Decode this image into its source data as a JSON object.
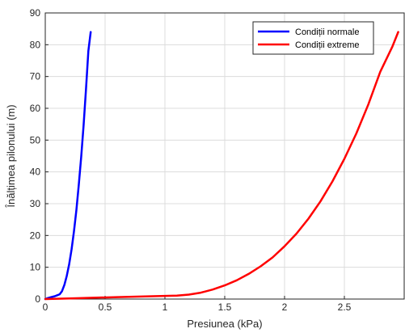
{
  "chart_data": {
    "type": "line",
    "xlabel": "Presiunea (kPa)",
    "ylabel": "Înălțimea pilonului (m)",
    "xlim": [
      0,
      3
    ],
    "ylim": [
      0,
      90
    ],
    "xticks": [
      0,
      0.5,
      1,
      1.5,
      2,
      2.5
    ],
    "xtick_labels": [
      "0",
      "0.5",
      "1",
      "1.5",
      "2",
      "2.5"
    ],
    "yticks": [
      0,
      10,
      20,
      30,
      40,
      50,
      60,
      70,
      80,
      90
    ],
    "ytick_labels": [
      "0",
      "10",
      "20",
      "30",
      "40",
      "50",
      "60",
      "70",
      "80",
      "90"
    ],
    "grid": true,
    "legend_position": "top-right",
    "series": [
      {
        "name": "Condiții normale",
        "color": "#0000ff",
        "x": [
          0,
          0.02,
          0.05,
          0.08,
          0.1,
          0.12,
          0.14,
          0.16,
          0.18,
          0.2,
          0.22,
          0.24,
          0.26,
          0.28,
          0.3,
          0.32,
          0.34,
          0.36,
          0.38
        ],
        "y": [
          0,
          0.3,
          0.6,
          0.9,
          1.2,
          1.5,
          2.5,
          4.5,
          7.3,
          11.0,
          15.7,
          21.3,
          28.0,
          35.8,
          44.6,
          54.6,
          65.7,
          78.0,
          84
        ]
      },
      {
        "name": "Condiții extreme",
        "color": "#ff0000",
        "x": [
          0,
          0.2,
          0.4,
          0.6,
          0.8,
          1.0,
          1.1,
          1.2,
          1.3,
          1.4,
          1.5,
          1.6,
          1.7,
          1.8,
          1.9,
          2.0,
          2.1,
          2.2,
          2.3,
          2.4,
          2.5,
          2.6,
          2.7,
          2.8,
          2.9,
          2.95
        ],
        "y": [
          0,
          0.2,
          0.4,
          0.6,
          0.8,
          1.0,
          1.1,
          1.4,
          2.0,
          3.0,
          4.3,
          5.9,
          7.9,
          10.3,
          13.1,
          16.6,
          20.6,
          25.3,
          30.7,
          37.0,
          44.1,
          52.1,
          61.2,
          71.5,
          79.3,
          84
        ]
      }
    ]
  }
}
